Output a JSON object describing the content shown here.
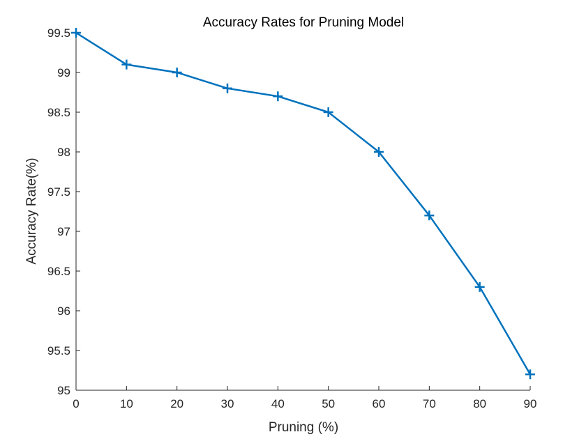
{
  "chart_data": {
    "type": "line",
    "title": "Accuracy Rates for Pruning Model",
    "xlabel": "Pruning (%)",
    "ylabel": "Accuracy Rate(%)",
    "xlim": [
      0,
      90
    ],
    "ylim": [
      95,
      99.5
    ],
    "xticks": [
      0,
      10,
      20,
      30,
      40,
      50,
      60,
      70,
      80,
      90
    ],
    "yticks": [
      95,
      95.5,
      96,
      96.5,
      97,
      97.5,
      98,
      98.5,
      99,
      99.5
    ],
    "xtick_labels": [
      "0",
      "10",
      "20",
      "30",
      "40",
      "50",
      "60",
      "70",
      "80",
      "90"
    ],
    "ytick_labels": [
      "95",
      "95.5",
      "96",
      "96.5",
      "97",
      "97.5",
      "98",
      "98.5",
      "99",
      "99.5"
    ],
    "grid": false,
    "legend": false,
    "series": [
      {
        "color": "#0072BD",
        "marker": "plus",
        "x": [
          0,
          10,
          20,
          30,
          40,
          50,
          60,
          70,
          80,
          90
        ],
        "y": [
          99.5,
          99.1,
          99.0,
          98.8,
          98.7,
          98.5,
          98.0,
          97.2,
          96.3,
          95.2
        ]
      }
    ]
  }
}
